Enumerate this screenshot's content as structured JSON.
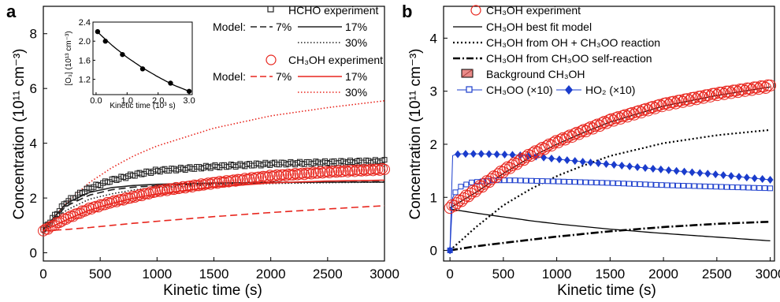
{
  "chart_data": [
    {
      "panel_label": "a",
      "type": "scatter",
      "xlabel": "Kinetic time (s)",
      "ylabel": "Concentration (10¹¹ cm⁻³)",
      "xlim": [
        0,
        3000
      ],
      "ylim": [
        -0.3,
        9.0
      ],
      "xticks": [
        0,
        500,
        1000,
        1500,
        2000,
        2500,
        3000
      ],
      "yticks": [
        0,
        2,
        4,
        6,
        8
      ],
      "colors": {
        "hcho": "#222222",
        "ch3oh": "#e8261e"
      },
      "legend": {
        "hcho_experiment": "HCHO experiment",
        "model_label": "Model:",
        "p7": "7%",
        "p17": "17%",
        "p30": "30%",
        "ch3oh_experiment": "CH₃OH experiment"
      },
      "series": [
        {
          "name": "HCHO experiment",
          "marker": "square-open",
          "color": "#222222",
          "x_start": 0,
          "x_end": 3000,
          "count": 150,
          "x": [
            0,
            200,
            400,
            600,
            800,
            1000,
            1500,
            2000,
            2500,
            3000
          ],
          "y": [
            0.85,
            1.85,
            2.35,
            2.65,
            2.85,
            3.0,
            3.15,
            3.25,
            3.3,
            3.35
          ]
        },
        {
          "name": "CH₃OH experiment",
          "marker": "circle-open",
          "color": "#e8261e",
          "x_start": 0,
          "x_end": 3000,
          "count": 150,
          "x": [
            0,
            200,
            400,
            600,
            800,
            1000,
            1500,
            2000,
            2500,
            3000
          ],
          "y": [
            0.8,
            1.25,
            1.6,
            1.85,
            2.05,
            2.25,
            2.55,
            2.8,
            2.95,
            3.05
          ]
        }
      ],
      "model_curves": [
        {
          "group": "HCHO",
          "pct": "7%",
          "style": "dashed",
          "color": "#222222",
          "x": [
            0,
            200,
            400,
            600,
            800,
            1000,
            1500,
            2000,
            2500,
            3000
          ],
          "y": [
            0.85,
            1.7,
            2.1,
            2.3,
            2.4,
            2.45,
            2.52,
            2.56,
            2.58,
            2.6
          ]
        },
        {
          "group": "HCHO",
          "pct": "17%",
          "style": "solid",
          "color": "#222222",
          "x": [
            0,
            200,
            400,
            600,
            800,
            1000,
            1500,
            2000,
            2500,
            3000
          ],
          "y": [
            0.85,
            1.8,
            2.2,
            2.38,
            2.46,
            2.5,
            2.55,
            2.57,
            2.58,
            2.58
          ]
        },
        {
          "group": "HCHO",
          "pct": "30%",
          "style": "dotted",
          "color": "#222222",
          "x": [
            0,
            200,
            400,
            600,
            800,
            1000,
            1500,
            2000,
            2500,
            3000
          ],
          "y": [
            0.85,
            1.55,
            1.95,
            2.15,
            2.3,
            2.38,
            2.48,
            2.53,
            2.56,
            2.58
          ]
        },
        {
          "group": "CH3OH",
          "pct": "7%",
          "style": "dashed",
          "color": "#e8261e",
          "x": [
            0,
            200,
            400,
            600,
            800,
            1000,
            1500,
            2000,
            2500,
            3000
          ],
          "y": [
            0.8,
            0.85,
            0.92,
            1.0,
            1.08,
            1.15,
            1.32,
            1.47,
            1.6,
            1.72
          ]
        },
        {
          "group": "CH3OH",
          "pct": "17%",
          "style": "solid",
          "color": "#e8261e",
          "x": [
            0,
            200,
            400,
            600,
            800,
            1000,
            1500,
            2000,
            2500,
            3000
          ],
          "y": [
            0.8,
            1.2,
            1.55,
            1.8,
            2.0,
            2.15,
            2.4,
            2.55,
            2.62,
            2.65
          ]
        },
        {
          "group": "CH3OH",
          "pct": "30%",
          "style": "dotted",
          "color": "#e8261e",
          "x": [
            0,
            200,
            400,
            600,
            800,
            1000,
            1500,
            2000,
            2500,
            3000
          ],
          "y": [
            0.8,
            1.8,
            2.55,
            3.1,
            3.55,
            3.9,
            4.55,
            5.0,
            5.3,
            5.55
          ]
        }
      ],
      "inset": {
        "type": "scatter",
        "xlabel": "Kinetic time (10³ s)",
        "ylabel": "[O₃] (10¹³ cm⁻³)",
        "xlim": [
          -0.1,
          3.1
        ],
        "ylim": [
          0.88,
          2.4
        ],
        "xticks": [
          "0.0",
          "1.0",
          "2.0",
          "3.0"
        ],
        "yticks": [
          "1.2",
          "1.6",
          "2.0",
          "2.4"
        ],
        "points": {
          "x": [
            0.05,
            0.3,
            0.85,
            1.5,
            2.4,
            3.0
          ],
          "y": [
            2.2,
            2.0,
            1.72,
            1.42,
            1.12,
            0.95
          ]
        },
        "fit": {
          "x": [
            0.0,
            0.5,
            1.0,
            1.5,
            2.0,
            2.5,
            3.0
          ],
          "y": [
            2.22,
            1.92,
            1.66,
            1.44,
            1.25,
            1.08,
            0.95
          ]
        }
      }
    },
    {
      "panel_label": "b",
      "type": "line",
      "xlabel": "Kinetic time (s)",
      "ylabel": "Concentration (10¹¹ cm⁻³)",
      "xlim": [
        -60,
        3040
      ],
      "ylim": [
        -0.2,
        4.6
      ],
      "xticks": [
        0,
        500,
        1000,
        1500,
        2000,
        2500,
        3000
      ],
      "yticks": [
        0,
        1,
        2,
        3,
        4
      ],
      "colors": {
        "ch3oh": "#e8261e",
        "blue": "#1a3ccc",
        "black": "#000000",
        "bg_fill": "#e98a88"
      },
      "legend": {
        "ch3oh_experiment": "CH₃OH experiment",
        "best_fit": "CH₃OH best fit model",
        "from_oh": "CH₃OH from OH + CH₃OO reaction",
        "from_self": "CH₃OH from CH₃OO self-reaction",
        "background": "Background CH₃OH",
        "ch3oo": "CH₃OO (×10)",
        "ho2": "HO₂ (×10)"
      },
      "series": [
        {
          "name": "CH₃OH experiment",
          "marker": "circle-open",
          "color": "#e8261e",
          "x_start": 0,
          "x_end": 3000,
          "count": 140,
          "x": [
            0,
            250,
            500,
            750,
            1000,
            1250,
            1500,
            2000,
            2500,
            3000
          ],
          "y": [
            0.8,
            1.15,
            1.5,
            1.8,
            2.05,
            2.25,
            2.45,
            2.75,
            2.95,
            3.1
          ]
        },
        {
          "name": "CH₃OH best fit model",
          "style": "solid",
          "color": "#000000",
          "x": [
            0,
            250,
            500,
            750,
            1000,
            1250,
            1500,
            2000,
            2500,
            3000
          ],
          "y": [
            0.8,
            1.1,
            1.45,
            1.75,
            2.0,
            2.22,
            2.42,
            2.72,
            2.92,
            3.08
          ]
        },
        {
          "name": "CH₃OH from OH + CH₃OO reaction",
          "style": "dotted",
          "color": "#000000",
          "x": [
            0,
            250,
            500,
            750,
            1000,
            1250,
            1500,
            2000,
            2500,
            3000
          ],
          "y": [
            0.0,
            0.45,
            0.85,
            1.15,
            1.4,
            1.6,
            1.78,
            2.02,
            2.17,
            2.27
          ]
        },
        {
          "name": "CH₃OH from CH₃OO self-reaction",
          "style": "dashdot",
          "color": "#000000",
          "x": [
            0,
            250,
            500,
            750,
            1000,
            1250,
            1500,
            2000,
            2500,
            3000
          ],
          "y": [
            0.0,
            0.08,
            0.14,
            0.2,
            0.26,
            0.31,
            0.36,
            0.44,
            0.5,
            0.54
          ]
        },
        {
          "name": "Background CH₃OH",
          "style": "solid-thin",
          "color": "#000000",
          "x": [
            0,
            250,
            500,
            750,
            1000,
            1250,
            1500,
            2000,
            2500,
            3000
          ],
          "y": [
            0.78,
            0.7,
            0.63,
            0.56,
            0.5,
            0.45,
            0.4,
            0.32,
            0.25,
            0.18
          ]
        },
        {
          "name": "CH₃OO (×10)",
          "marker": "square-open",
          "color": "#1a3ccc",
          "x": [
            0,
            10,
            30,
            100,
            200,
            400,
            600,
            800,
            1000,
            1500,
            2000,
            2500,
            3000
          ],
          "y": [
            0.0,
            0.8,
            1.05,
            1.2,
            1.28,
            1.32,
            1.32,
            1.31,
            1.3,
            1.27,
            1.23,
            1.2,
            1.17
          ]
        },
        {
          "name": "HO₂ (×10)",
          "marker": "diamond-filled",
          "color": "#1a3ccc",
          "x": [
            0,
            10,
            30,
            100,
            300,
            600,
            800,
            1000,
            1500,
            2000,
            2500,
            3000
          ],
          "y": [
            0.0,
            1.75,
            1.8,
            1.82,
            1.82,
            1.8,
            1.77,
            1.72,
            1.62,
            1.52,
            1.43,
            1.33
          ]
        }
      ]
    }
  ]
}
